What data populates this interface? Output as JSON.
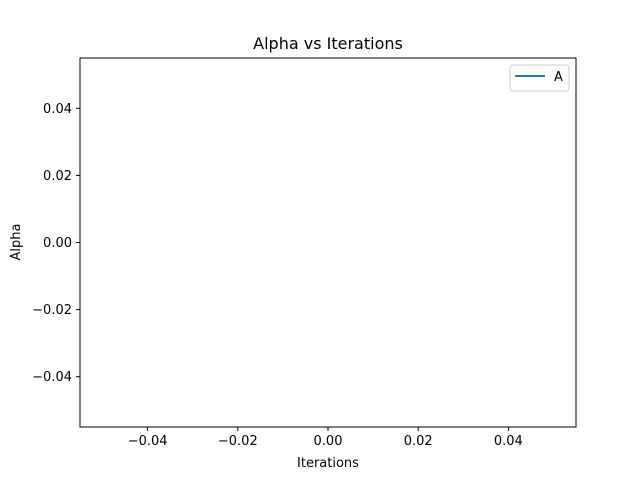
{
  "chart_data": {
    "type": "line",
    "title": "Alpha vs Iterations",
    "xlabel": "Iterations",
    "ylabel": "Alpha",
    "xlim": [
      -0.055,
      0.055
    ],
    "ylim": [
      -0.055,
      0.055
    ],
    "xticks": [
      -0.04,
      -0.02,
      0.0,
      0.02,
      0.04
    ],
    "xtick_labels": [
      "−0.04",
      "−0.02",
      "0.00",
      "0.02",
      "0.04"
    ],
    "yticks": [
      -0.04,
      -0.02,
      0.0,
      0.02,
      0.04
    ],
    "ytick_labels": [
      "−0.04",
      "−0.02",
      "0.00",
      "0.02",
      "0.04"
    ],
    "grid": false,
    "legend_position": "top-right",
    "series": [
      {
        "name": "A",
        "color": "#1f77b4",
        "x": [],
        "y": []
      }
    ]
  }
}
